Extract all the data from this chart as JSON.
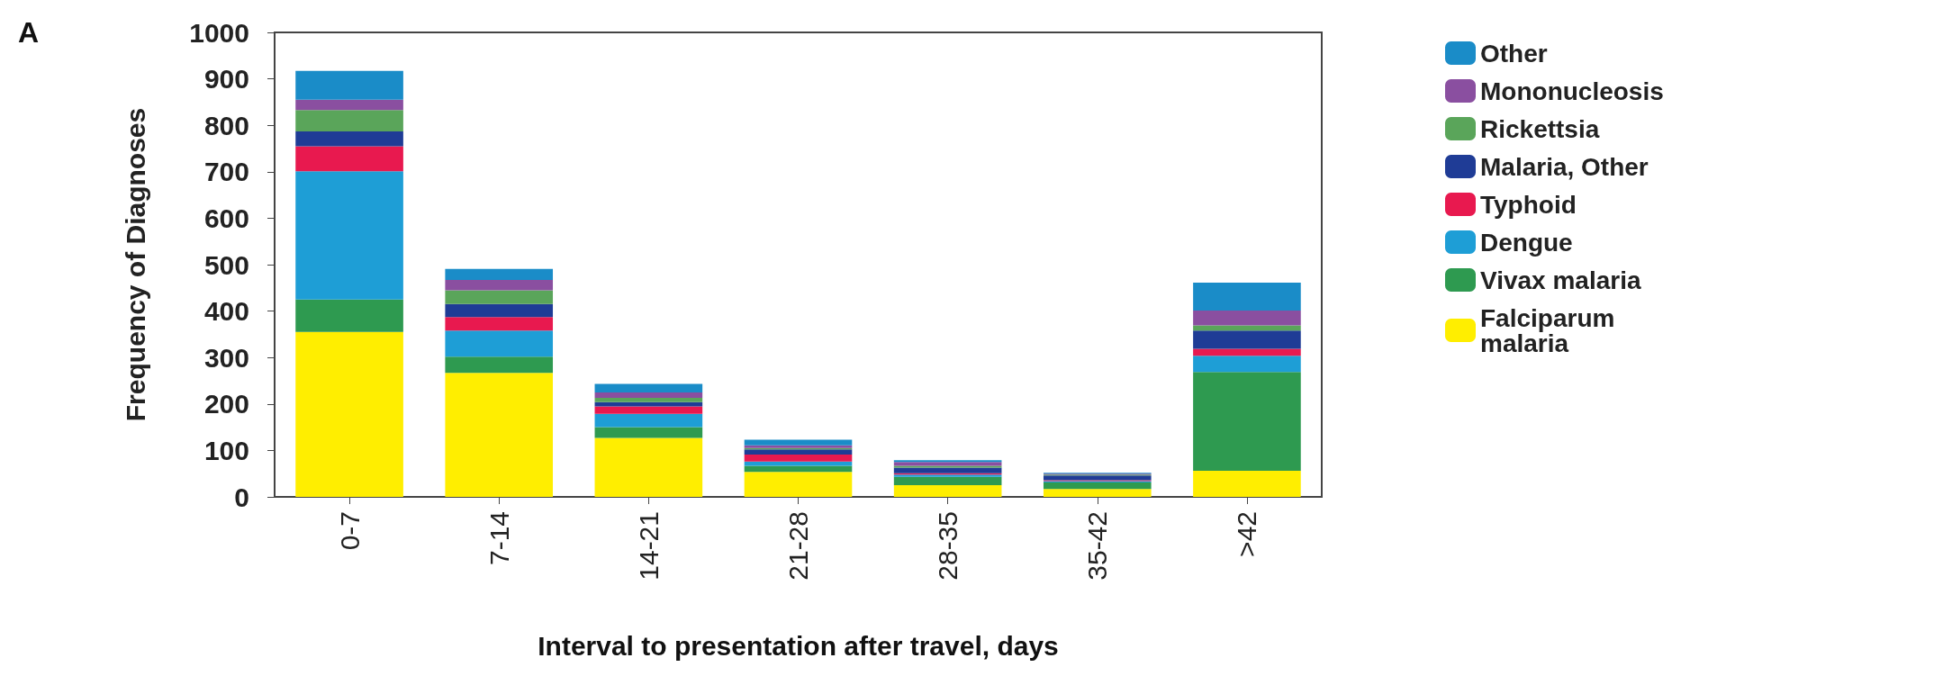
{
  "chart_data": {
    "type": "bar",
    "stacked": true,
    "xlabel": "Interval to presentation after travel, days",
    "ylabel": "Frequency of Diagnoses",
    "annotations": [
      "A"
    ],
    "categories": [
      "0-7",
      "7-14",
      "14-21",
      "21-28",
      "28-35",
      "35-42",
      ">42"
    ],
    "series": [
      {
        "name": "Falciparum malaria",
        "color": "#ffee00",
        "values": [
          355,
          267,
          127,
          54,
          25,
          17,
          56
        ]
      },
      {
        "name": "Vivax malaria",
        "color": "#2e9a50",
        "values": [
          70,
          35,
          23,
          13,
          18,
          14,
          213
        ]
      },
      {
        "name": "Dengue",
        "color": "#1e9ed6",
        "values": [
          276,
          56,
          29,
          9,
          5,
          3,
          35
        ]
      },
      {
        "name": "Typhoid",
        "color": "#e8194f",
        "values": [
          54,
          29,
          16,
          15,
          3,
          2,
          15
        ]
      },
      {
        "name": "Malaria, Other",
        "color": "#1f3c96",
        "values": [
          32,
          28,
          9,
          11,
          12,
          10,
          39
        ]
      },
      {
        "name": "Rickettsia",
        "color": "#5aa55a",
        "values": [
          46,
          30,
          9,
          3,
          4,
          2,
          11
        ]
      },
      {
        "name": "Mononucleosis",
        "color": "#8a4fa0",
        "values": [
          22,
          22,
          12,
          6,
          8,
          2,
          32
        ]
      },
      {
        "name": "Other",
        "color": "#1a8cc8",
        "values": [
          62,
          24,
          18,
          12,
          4,
          2,
          60
        ]
      }
    ],
    "ylim": [
      0,
      1000
    ],
    "yticks": [
      0,
      100,
      200,
      300,
      400,
      500,
      600,
      700,
      800,
      900,
      1000
    ],
    "grid": false,
    "legend": "right"
  }
}
